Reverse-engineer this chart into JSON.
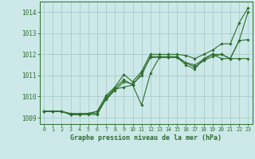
{
  "title": "Graphe pression niveau de la mer (hPa)",
  "background_color": "#cce8e8",
  "grid_color": "#aacccc",
  "line_color": "#2d6e2d",
  "marker_color": "#2d6e2d",
  "xlim": [
    -0.5,
    23.5
  ],
  "ylim": [
    1008.7,
    1014.5
  ],
  "yticks": [
    1009,
    1010,
    1011,
    1012,
    1013,
    1014
  ],
  "xticks": [
    0,
    1,
    2,
    3,
    4,
    5,
    6,
    7,
    8,
    9,
    10,
    11,
    12,
    13,
    14,
    15,
    16,
    17,
    18,
    19,
    20,
    21,
    22,
    23
  ],
  "series": [
    [
      1009.3,
      1009.3,
      1009.3,
      1009.15,
      1009.15,
      1009.15,
      1009.15,
      1009.9,
      1010.35,
      1010.45,
      1010.55,
      1011.1,
      1011.85,
      1011.85,
      1011.85,
      1011.85,
      1011.5,
      1011.3,
      1011.8,
      1012.0,
      1012.0,
      1011.8,
      1012.65,
      1014.0
    ],
    [
      1009.3,
      1009.3,
      1009.3,
      1009.2,
      1009.2,
      1009.2,
      1009.3,
      1009.85,
      1010.3,
      1010.7,
      1010.6,
      1011.0,
      1011.9,
      1011.9,
      1011.9,
      1011.9,
      1011.6,
      1011.5,
      1011.75,
      1012.0,
      1011.8,
      1011.8,
      1012.65,
      1012.7
    ],
    [
      1009.3,
      1009.3,
      1009.3,
      1009.15,
      1009.15,
      1009.2,
      1009.2,
      1009.95,
      1010.4,
      1010.8,
      1010.55,
      1009.6,
      1011.1,
      1011.85,
      1011.85,
      1011.85,
      1011.6,
      1011.4,
      1011.7,
      1011.9,
      1012.0,
      1011.8,
      1011.8,
      1011.8
    ],
    [
      1009.3,
      1009.3,
      1009.3,
      1009.15,
      1009.15,
      1009.2,
      1009.3,
      1010.05,
      1010.45,
      1011.05,
      1010.7,
      1011.2,
      1012.0,
      1012.0,
      1012.0,
      1012.0,
      1011.95,
      1011.8,
      1012.0,
      1012.2,
      1012.5,
      1012.5,
      1013.5,
      1014.2
    ]
  ]
}
